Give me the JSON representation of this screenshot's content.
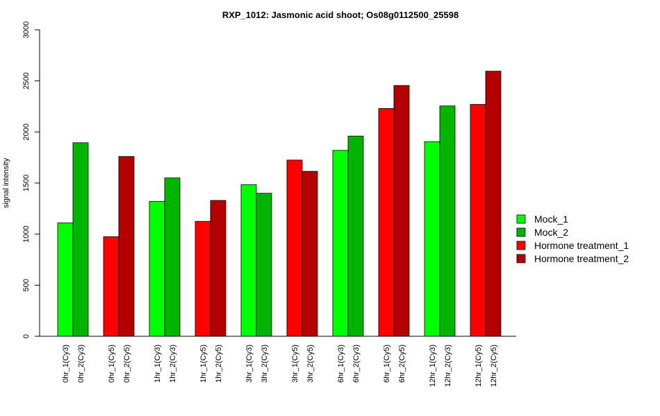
{
  "chart_data": {
    "type": "bar",
    "title": "RXP_1012: Jasmonic acid shoot; Os08g0112500_25598",
    "xlabel": "",
    "ylabel": "signal intensity",
    "ylim": [
      0,
      3000
    ],
    "yticks": [
      0,
      500,
      1000,
      1500,
      2000,
      2500,
      3000
    ],
    "grid": false,
    "legend_position": "right",
    "groups": [
      {
        "bars": [
          {
            "label": "0hr_1(Cy3)",
            "series": "Mock_1",
            "value": 1110
          },
          {
            "label": "0hr_2(Cy3)",
            "series": "Mock_2",
            "value": 1895
          }
        ]
      },
      {
        "bars": [
          {
            "label": "0hr_1(Cy5)",
            "series": "Hormone treatment_1",
            "value": 975
          },
          {
            "label": "0hr_2(Cy5)",
            "series": "Hormone treatment_2",
            "value": 1760
          }
        ]
      },
      {
        "bars": [
          {
            "label": "1hr_1(Cy3)",
            "series": "Mock_1",
            "value": 1320
          },
          {
            "label": "1hr_2(Cy3)",
            "series": "Mock_2",
            "value": 1550
          }
        ]
      },
      {
        "bars": [
          {
            "label": "1hr_1(Cy5)",
            "series": "Hormone treatment_1",
            "value": 1125
          },
          {
            "label": "1hr_2(Cy5)",
            "series": "Hormone treatment_2",
            "value": 1330
          }
        ]
      },
      {
        "bars": [
          {
            "label": "3hr_1(Cy3)",
            "series": "Mock_1",
            "value": 1485
          },
          {
            "label": "3hr_2(Cy3)",
            "series": "Mock_2",
            "value": 1400
          }
        ]
      },
      {
        "bars": [
          {
            "label": "3hr_1(Cy5)",
            "series": "Hormone treatment_1",
            "value": 1725
          },
          {
            "label": "3hr_2(Cy5)",
            "series": "Hormone treatment_2",
            "value": 1615
          }
        ]
      },
      {
        "bars": [
          {
            "label": "6hr_1(Cy3)",
            "series": "Mock_1",
            "value": 1820
          },
          {
            "label": "6hr_2(Cy3)",
            "series": "Mock_2",
            "value": 1960
          }
        ]
      },
      {
        "bars": [
          {
            "label": "6hr_1(Cy5)",
            "series": "Hormone treatment_1",
            "value": 2230
          },
          {
            "label": "6hr_2(Cy5)",
            "series": "Hormone treatment_2",
            "value": 2455
          }
        ]
      },
      {
        "bars": [
          {
            "label": "12hr_1(Cy3)",
            "series": "Mock_1",
            "value": 1905
          },
          {
            "label": "12hr_2(Cy3)",
            "series": "Mock_2",
            "value": 2255
          }
        ]
      },
      {
        "bars": [
          {
            "label": "12hr_1(Cy5)",
            "series": "Hormone treatment_1",
            "value": 2270
          },
          {
            "label": "12hr_2(Cy5)",
            "series": "Hormone treatment_2",
            "value": 2595
          }
        ]
      }
    ],
    "legend": [
      {
        "name": "Mock_1",
        "color": "#00ff00"
      },
      {
        "name": "Mock_2",
        "color": "#00b400"
      },
      {
        "name": "Hormone treatment_1",
        "color": "#ff0000"
      },
      {
        "name": "Hormone treatment_2",
        "color": "#b40000"
      }
    ]
  }
}
